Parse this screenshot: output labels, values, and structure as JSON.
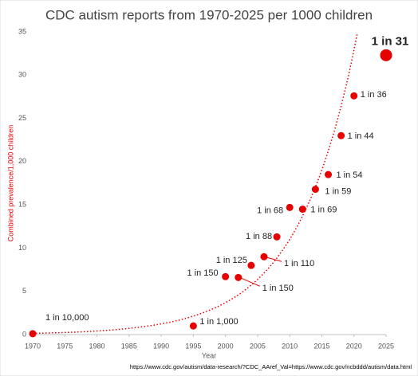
{
  "chart_data": {
    "type": "scatter",
    "title": "CDC autism reports from 1970-2025 per 1000 children",
    "x_label": "Year",
    "y_label": "Combined prevalence/1,000 children",
    "source": "https://www.cdc.gov/autism/data-research/?CDC_AAref_Val=https://www.cdc.gov/ncbddd/autism/data.html",
    "x": [
      1970,
      1995,
      2000,
      2002,
      2004,
      2006,
      2008,
      2010,
      2012,
      2014,
      2016,
      2018,
      2020,
      2025
    ],
    "values": [
      0.1,
      1.0,
      6.7,
      6.6,
      8.0,
      9.0,
      11.3,
      14.7,
      14.5,
      16.8,
      18.5,
      23.0,
      27.6,
      32.3
    ],
    "value_labels": [
      "1 in 10,000",
      "1 in 1,000",
      "1 in 150",
      "1 in 150",
      "1 in 125",
      "1 in 110",
      "1 in 88",
      "1 in 68",
      "1 in 69",
      "1 in 59",
      "1 in 54",
      "1 in 44",
      "1 in 36",
      "1 in 31"
    ],
    "color": "#e60000",
    "highlight_point": 2025,
    "trendline": "exponential",
    "xlim": [
      1970,
      2025
    ],
    "xticks": [
      1970,
      1975,
      1980,
      1985,
      1990,
      1995,
      2000,
      2005,
      2010,
      2015,
      2020,
      2025
    ],
    "ylim": [
      0,
      35
    ],
    "yticks": [
      0,
      5,
      10,
      15,
      20,
      25,
      30,
      35
    ],
    "grid": false
  }
}
